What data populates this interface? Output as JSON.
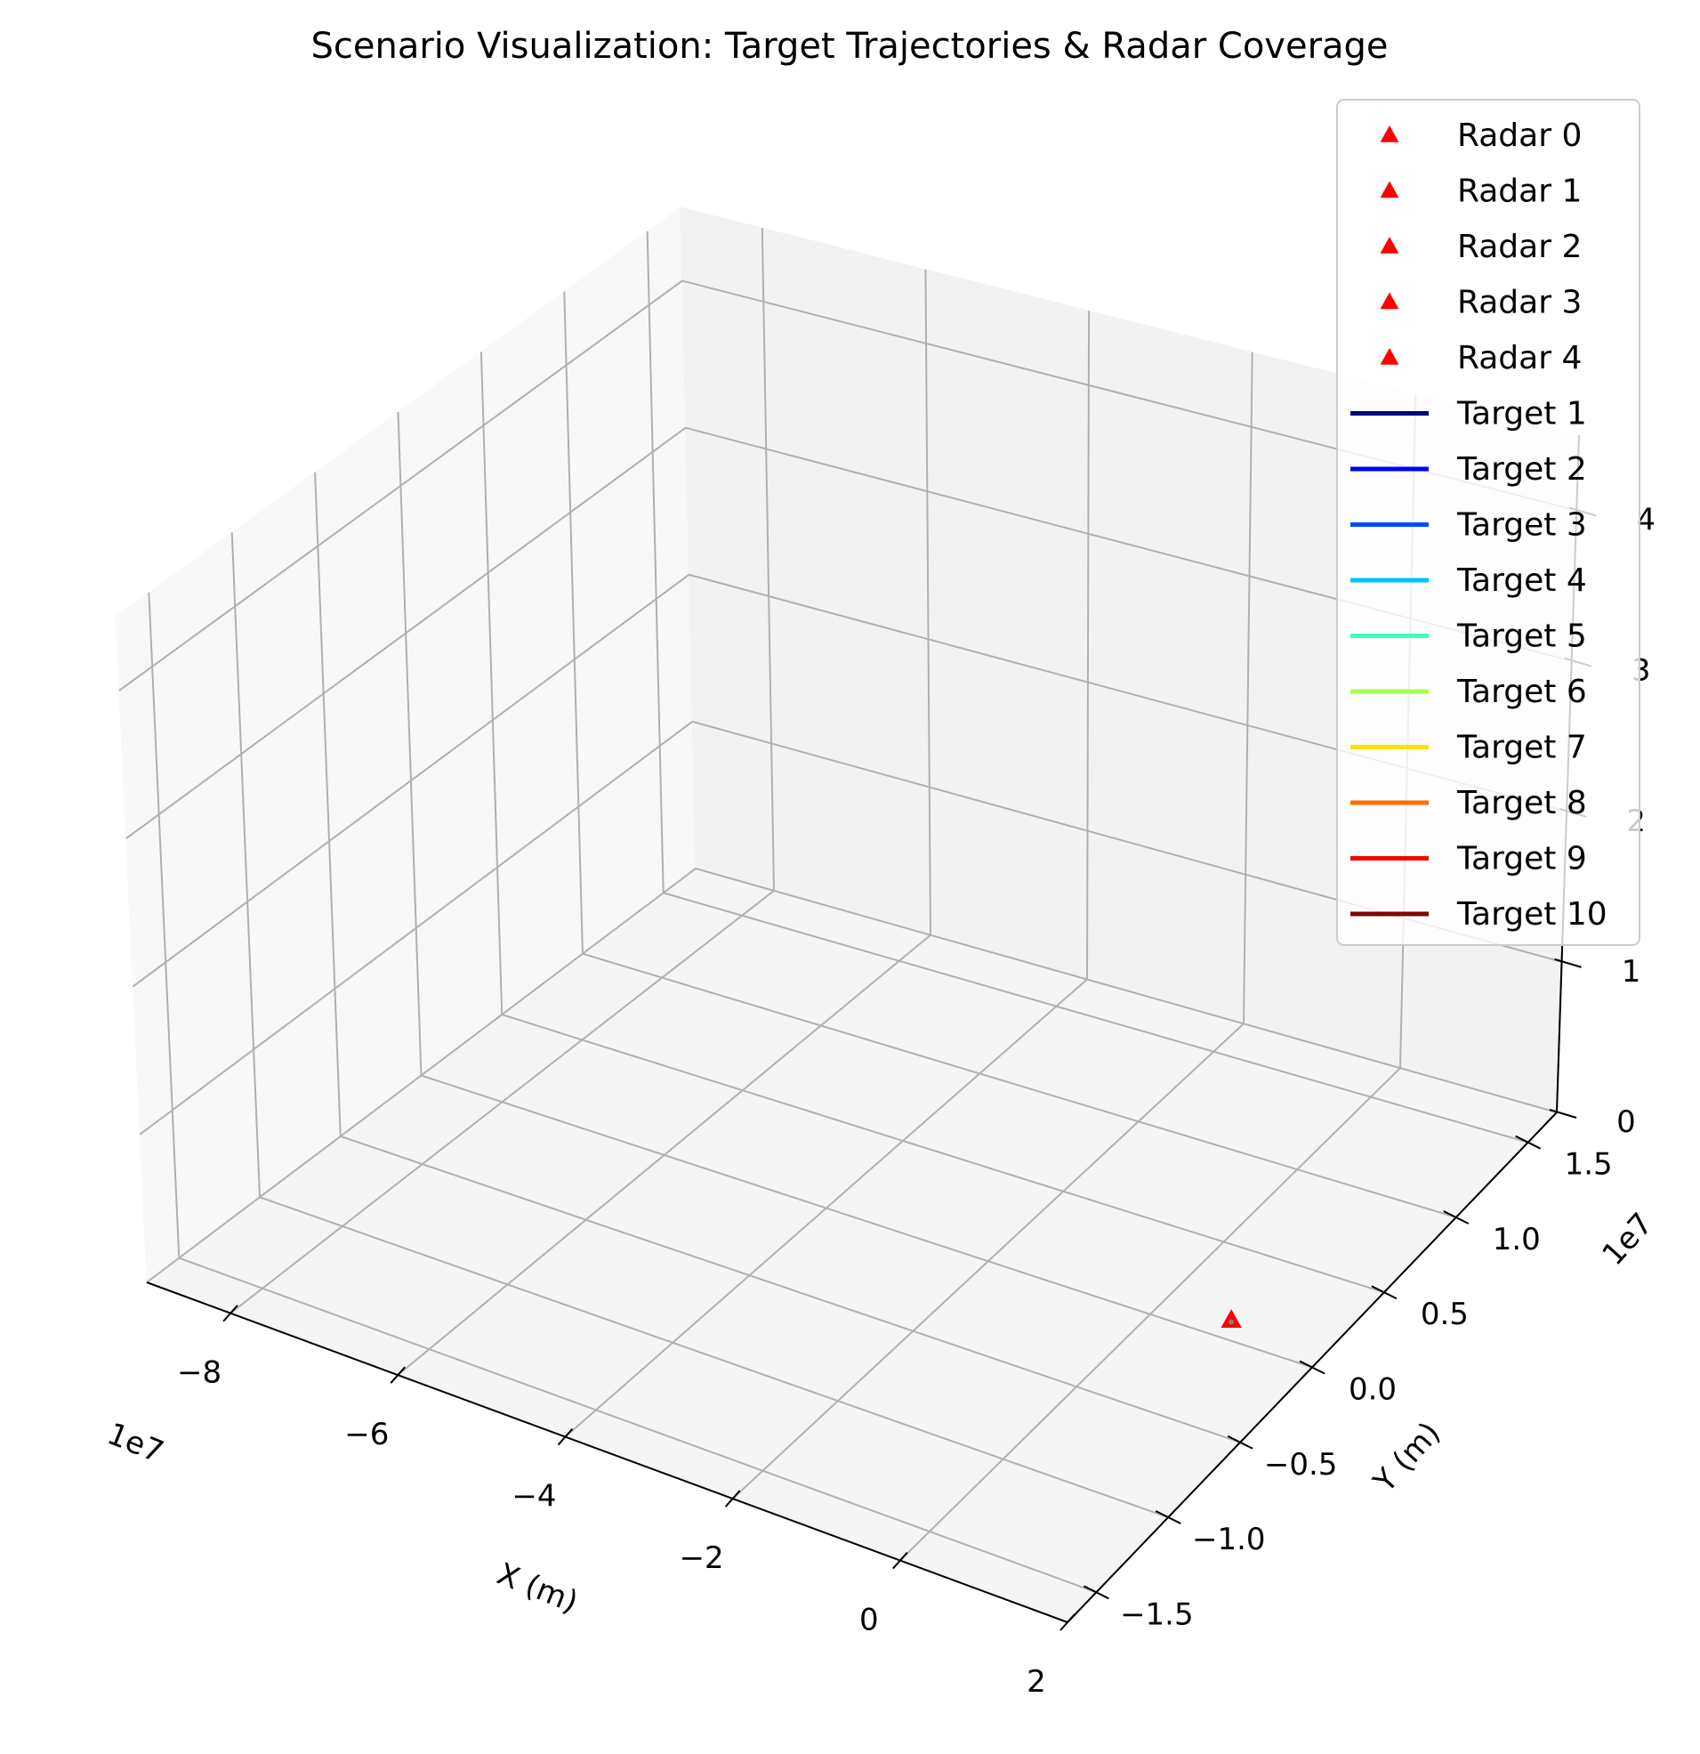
{
  "chart_data": {
    "type": "scatter",
    "title": "Scenario Visualization: Target Trajectories & Radar Coverage",
    "xlabel": "X (m)",
    "ylabel": "Y (m)",
    "zlabel": "",
    "x_offset_text": "1e7",
    "y_offset_text": "1e7",
    "x_ticks": [
      "−8",
      "−6",
      "−4",
      "−2",
      "0",
      "2"
    ],
    "y_ticks": [
      "−1.5",
      "−1.0",
      "−0.5",
      "0.0",
      "0.5",
      "1.0",
      "1.5"
    ],
    "z_ticks": [
      "0",
      "1",
      "2",
      "3",
      "4"
    ],
    "xlim": [
      -9,
      2
    ],
    "ylim": [
      -1.7,
      1.7
    ],
    "zlim": [
      0,
      4.5
    ],
    "grid": true,
    "legend_position": "top-right",
    "radars": [
      {
        "name": "Radar 0",
        "color": "#ff0000",
        "x": 0.1,
        "y": 0.3,
        "z": 0
      },
      {
        "name": "Radar 1",
        "color": "#ff0000",
        "x": 0.1,
        "y": 0.3,
        "z": 0
      },
      {
        "name": "Radar 2",
        "color": "#ff0000",
        "x": 0.1,
        "y": 0.3,
        "z": 0
      },
      {
        "name": "Radar 3",
        "color": "#ff0000",
        "x": 0.1,
        "y": 0.3,
        "z": 0
      },
      {
        "name": "Radar 4",
        "color": "#ff0000",
        "x": 0.1,
        "y": 0.3,
        "z": 0
      }
    ],
    "targets": [
      {
        "name": "Target 1",
        "color": "#00007f"
      },
      {
        "name": "Target 2",
        "color": "#0000f1"
      },
      {
        "name": "Target 3",
        "color": "#004dff"
      },
      {
        "name": "Target 4",
        "color": "#00c3ff"
      },
      {
        "name": "Target 5",
        "color": "#3bffc3"
      },
      {
        "name": "Target 6",
        "color": "#a6ff51"
      },
      {
        "name": "Target 7",
        "color": "#ffe000"
      },
      {
        "name": "Target 8",
        "color": "#ff6c00"
      },
      {
        "name": "Target 9",
        "color": "#f10800"
      },
      {
        "name": "Target 10",
        "color": "#7f0000"
      }
    ]
  }
}
